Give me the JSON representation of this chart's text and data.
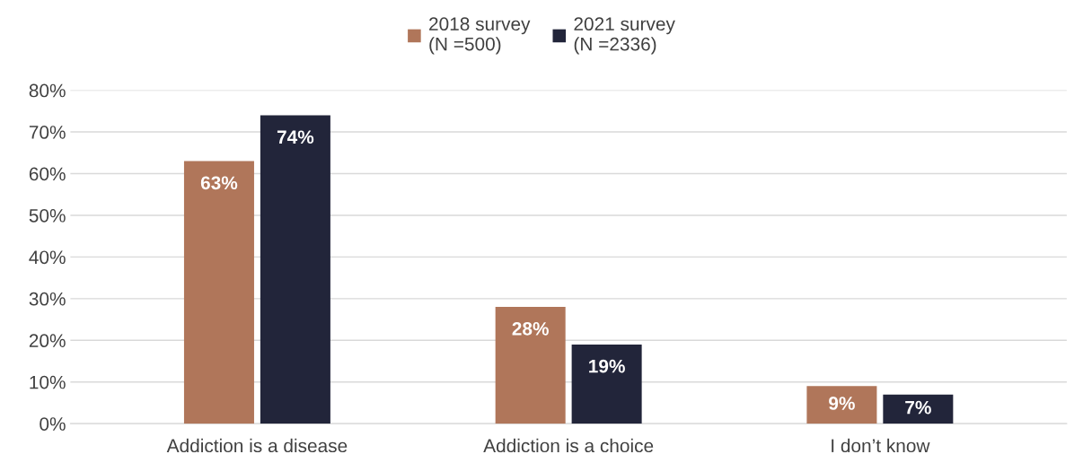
{
  "chart_data": {
    "type": "bar",
    "categories": [
      "Addiction is a disease",
      "Addiction is a choice",
      "I don’t know"
    ],
    "series": [
      {
        "name": "2018 survey\n(N =500)",
        "color": "#b0765a",
        "values": [
          63,
          28,
          9
        ],
        "value_labels": [
          "63%",
          "28%",
          "9%"
        ]
      },
      {
        "name": "2021 survey\n(N =2336)",
        "color": "#22253a",
        "values": [
          74,
          19,
          7
        ],
        "value_labels": [
          "74%",
          "19%",
          "7%"
        ]
      }
    ],
    "ylim": [
      0,
      80
    ],
    "yticks": [
      {
        "value": 0,
        "label": "0%"
      },
      {
        "value": 10,
        "label": "10%"
      },
      {
        "value": 20,
        "label": "20%"
      },
      {
        "value": 30,
        "label": "30%"
      },
      {
        "value": 40,
        "label": "40%"
      },
      {
        "value": 50,
        "label": "50%"
      },
      {
        "value": 60,
        "label": "60%"
      },
      {
        "value": 70,
        "label": "70%"
      },
      {
        "value": 80,
        "label": "80%"
      }
    ],
    "grid": "y",
    "legend": "top"
  }
}
